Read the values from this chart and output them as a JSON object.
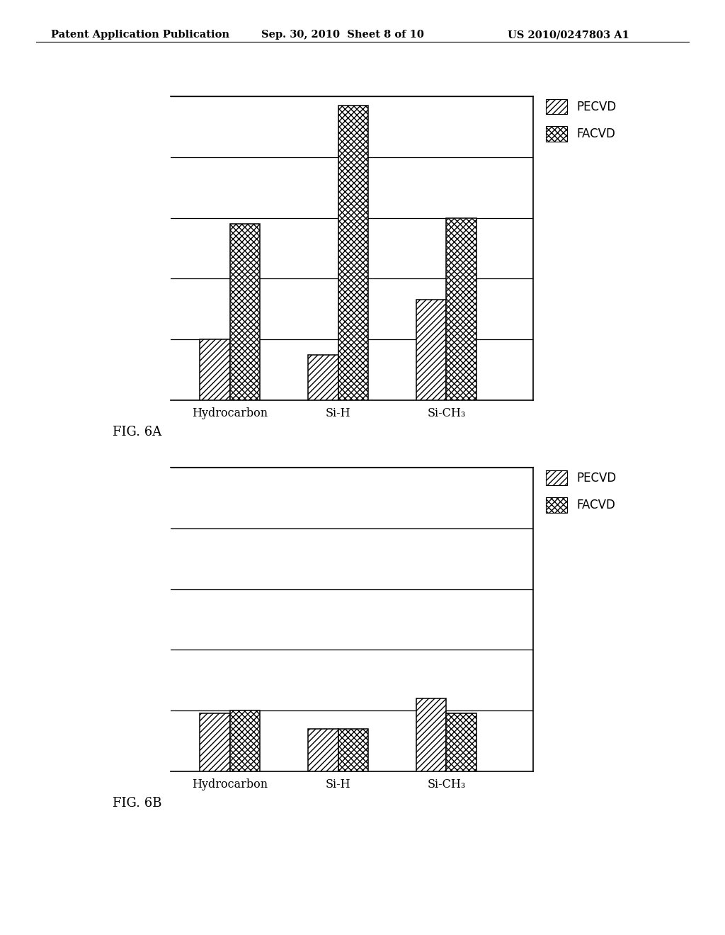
{
  "header_left": "Patent Application Publication",
  "header_mid": "Sep. 30, 2010  Sheet 8 of 10",
  "header_right": "US 2010/0247803 A1",
  "fig_a_label": "FIG. 6A",
  "fig_b_label": "FIG. 6B",
  "categories": [
    "Hydrocarbon",
    "Si-H",
    "Si-CH₃"
  ],
  "fig_a": {
    "pecvd": [
      0.2,
      0.15,
      0.33
    ],
    "facvd": [
      0.58,
      0.97,
      0.6
    ]
  },
  "fig_b": {
    "pecvd": [
      0.19,
      0.14,
      0.24
    ],
    "facvd": [
      0.2,
      0.14,
      0.19
    ]
  },
  "ylim_a": [
    0,
    1.0
  ],
  "ylim_b": [
    0,
    1.0
  ],
  "background_color": "#ffffff",
  "edge_color": "#000000",
  "hatch_pecvd": "////",
  "hatch_facvd": "xxxx",
  "legend_labels": [
    "PECVD",
    "FACVD"
  ],
  "bar_width": 0.28,
  "n_gridlines": 5
}
